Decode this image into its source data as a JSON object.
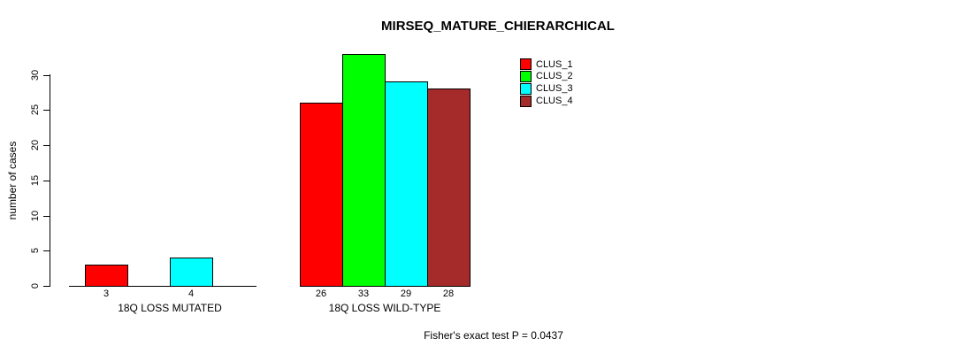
{
  "title": "MIRSEQ_MATURE_CHIERARCHICAL",
  "y_axis": {
    "label": "number of cases",
    "ticks": [
      0,
      5,
      10,
      15,
      20,
      25,
      30
    ]
  },
  "footnote": "Fisher's exact test P = 0.0437",
  "chart_data": {
    "type": "bar",
    "title": "MIRSEQ_MATURE_CHIERARCHICAL",
    "categories": [
      "18Q LOSS MUTATED",
      "18Q LOSS WILD-TYPE"
    ],
    "series": [
      {
        "name": "CLUS_1",
        "color": "#FF0000",
        "values": [
          3,
          26
        ]
      },
      {
        "name": "CLUS_2",
        "color": "#00FF00",
        "values": [
          0,
          33
        ]
      },
      {
        "name": "CLUS_3",
        "color": "#00FFFF",
        "values": [
          4,
          29
        ]
      },
      {
        "name": "CLUS_4",
        "color": "#A52A2A",
        "values": [
          0,
          28
        ]
      }
    ],
    "bar_value_labels": [
      [
        "3",
        "",
        "4",
        ""
      ],
      [
        "26",
        "33",
        "29",
        "28"
      ]
    ],
    "xlabel": "",
    "ylabel": "number of cases",
    "ylim": [
      0,
      33
    ],
    "grid": false,
    "zero_bars_hidden": true,
    "legend_position": "top-right",
    "annotation": "Fisher's exact test P = 0.0437"
  }
}
